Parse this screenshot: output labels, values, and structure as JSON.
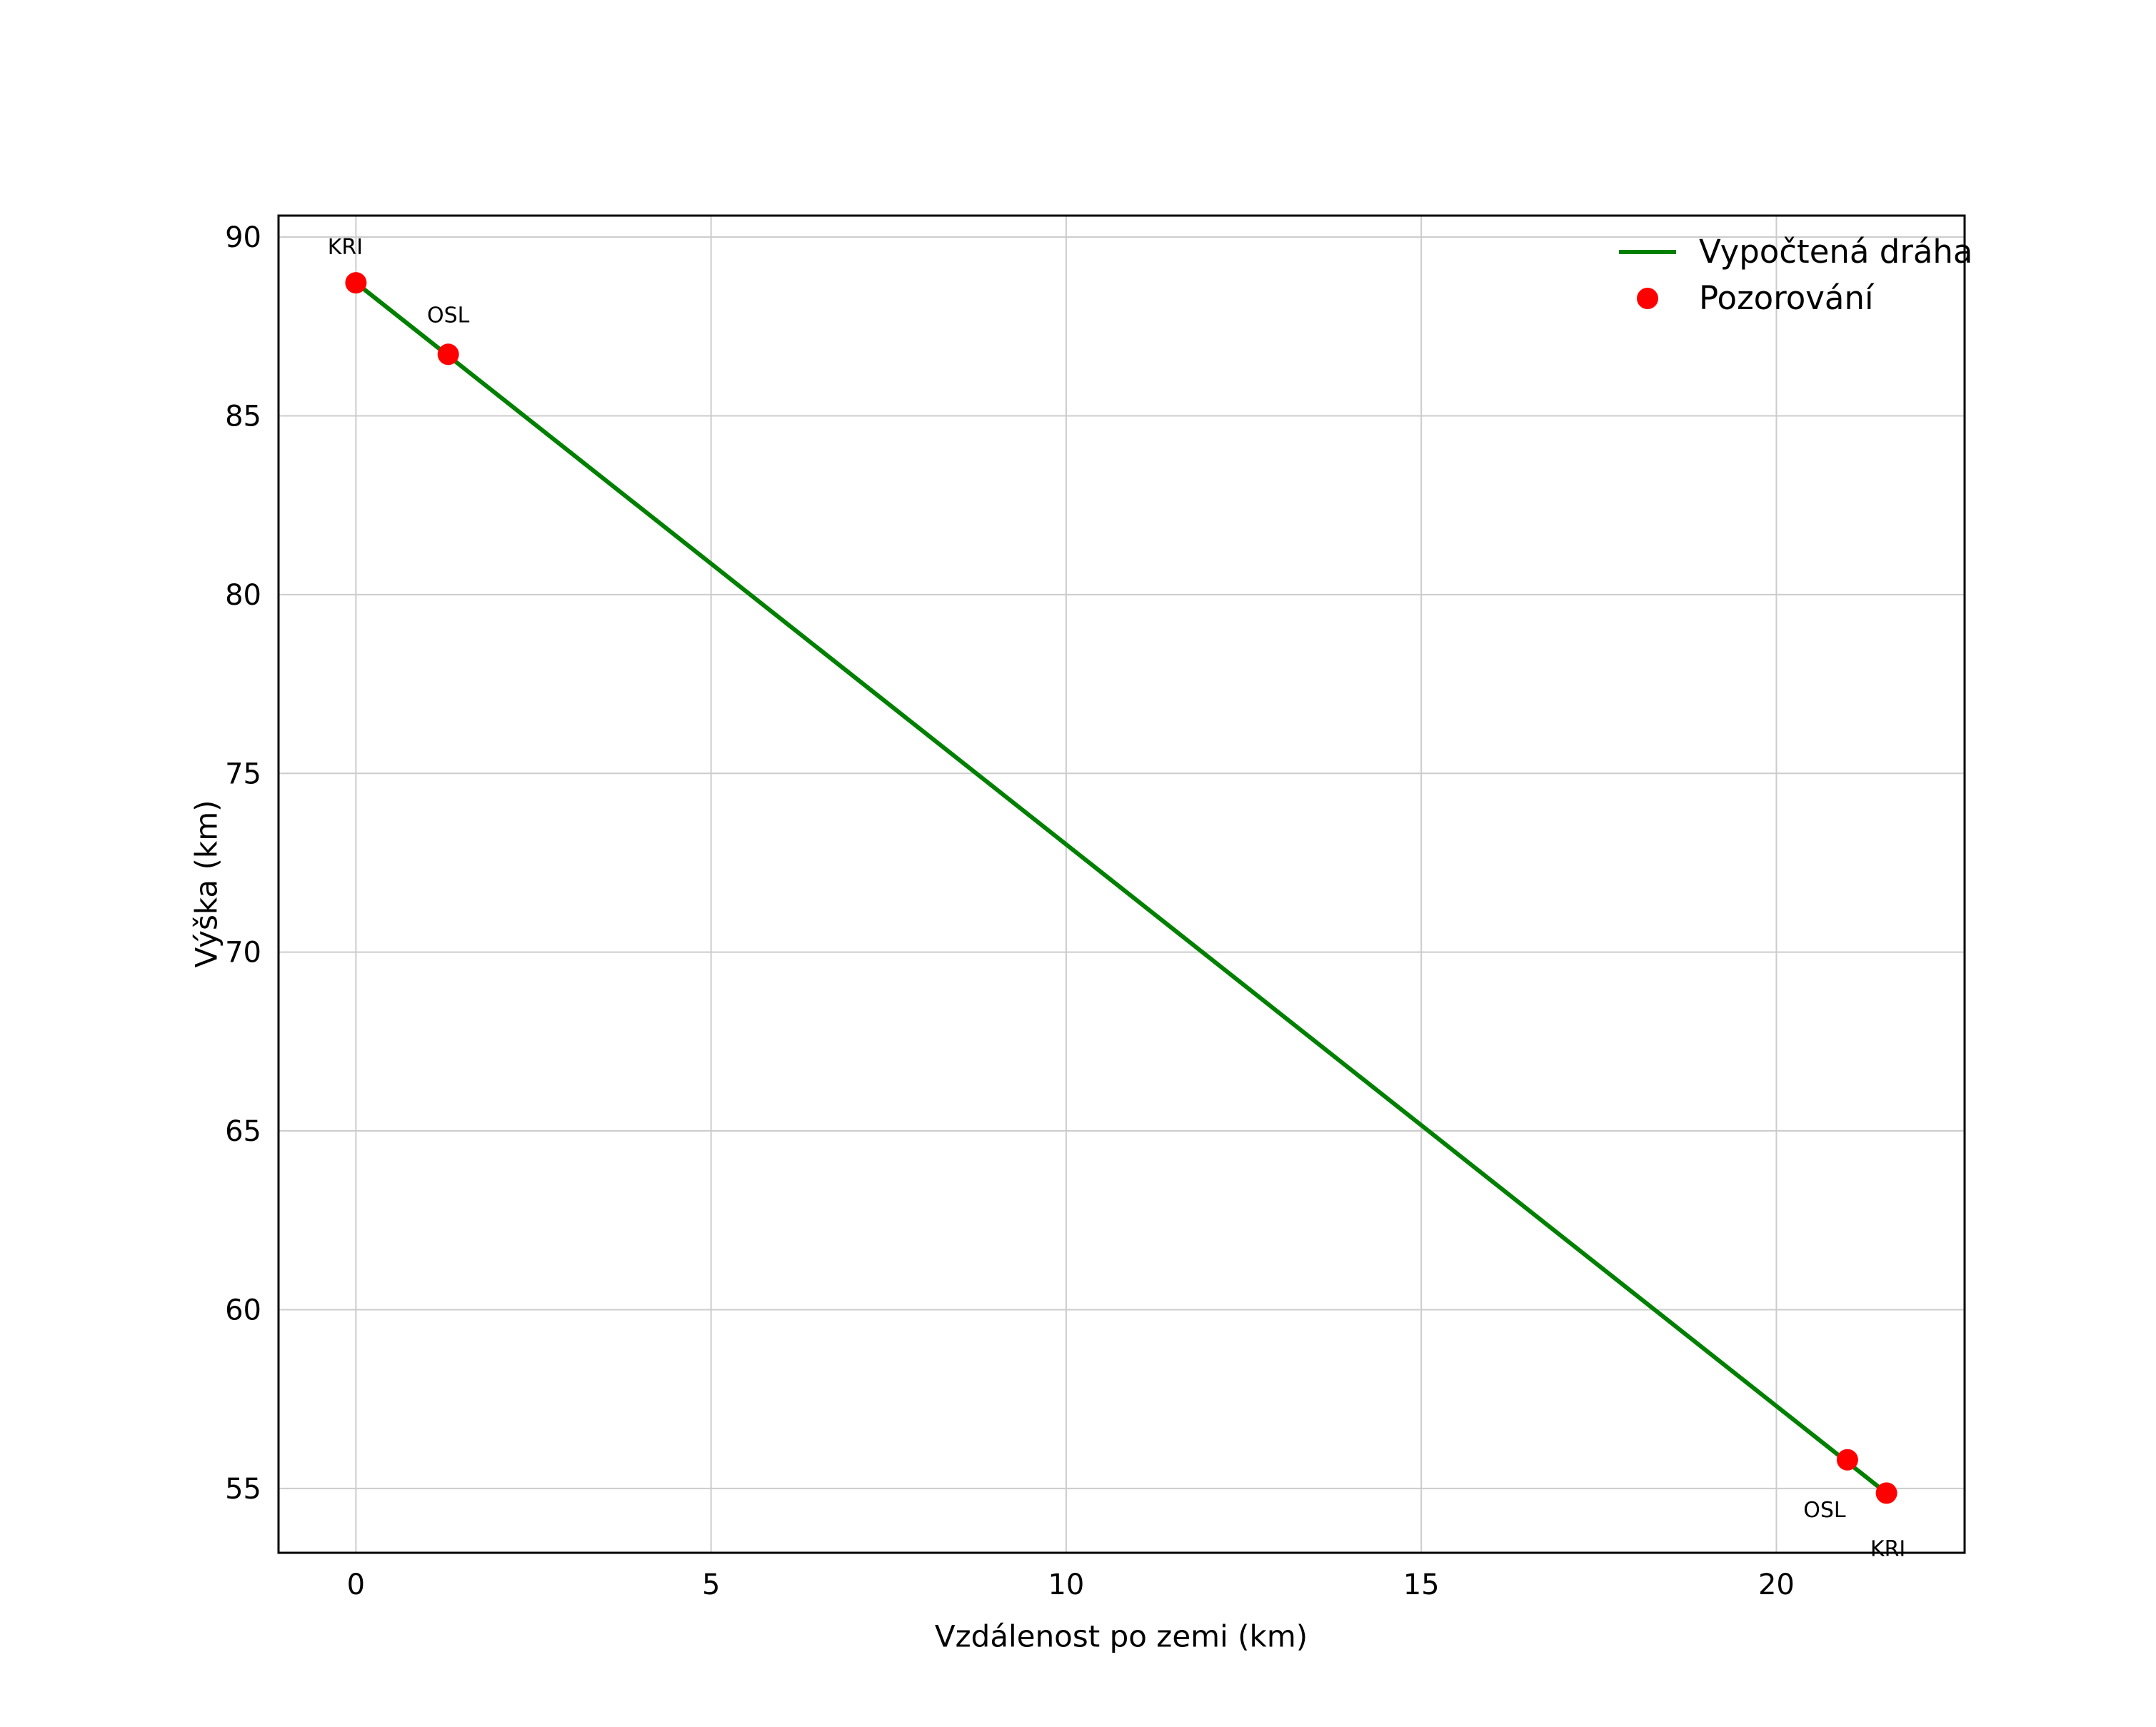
{
  "chart_data": {
    "type": "line",
    "title": "",
    "xlabel": "Vzdálenost po zemi (km)",
    "ylabel": "Výška (km)",
    "xlim": [
      -1.09,
      22.65
    ],
    "ylim": [
      53.2,
      90.6
    ],
    "xticks": [
      0,
      5,
      10,
      15,
      20
    ],
    "yticks": [
      55,
      60,
      65,
      70,
      75,
      80,
      85,
      90
    ],
    "grid": true,
    "colors": {
      "line": "#008000",
      "marker": "#ff0000",
      "grid": "#cccccc",
      "spine": "#000000",
      "text": "#000000",
      "background": "#ffffff"
    },
    "series": [
      {
        "name": "Vypočtená dráha",
        "type": "line",
        "color": "#008000",
        "points": [
          [
            0.0,
            88.72
          ],
          [
            21.55,
            54.87
          ]
        ]
      }
    ],
    "scatter": {
      "name": "Pozorování",
      "color": "#ff0000",
      "points": [
        {
          "label": "KRI",
          "x": 0.0,
          "y": 88.72,
          "label_dx": -15,
          "label_dy": -40
        },
        {
          "label": "OSL",
          "x": 1.3,
          "y": 86.72,
          "label_dx": 0,
          "label_dy": -45
        },
        {
          "label": "OSL",
          "x": 21.0,
          "y": 55.8,
          "label_dx": -32,
          "label_dy": 80
        },
        {
          "label": "KRI",
          "x": 21.55,
          "y": 54.87,
          "label_dx": 2,
          "label_dy": 88
        }
      ]
    },
    "legend": {
      "position": "upper right",
      "entries": [
        {
          "label": "Vypočtená dráha",
          "marker": "line",
          "color": "#008000"
        },
        {
          "label": "Pozorování",
          "marker": "dot",
          "color": "#ff0000"
        }
      ]
    }
  }
}
